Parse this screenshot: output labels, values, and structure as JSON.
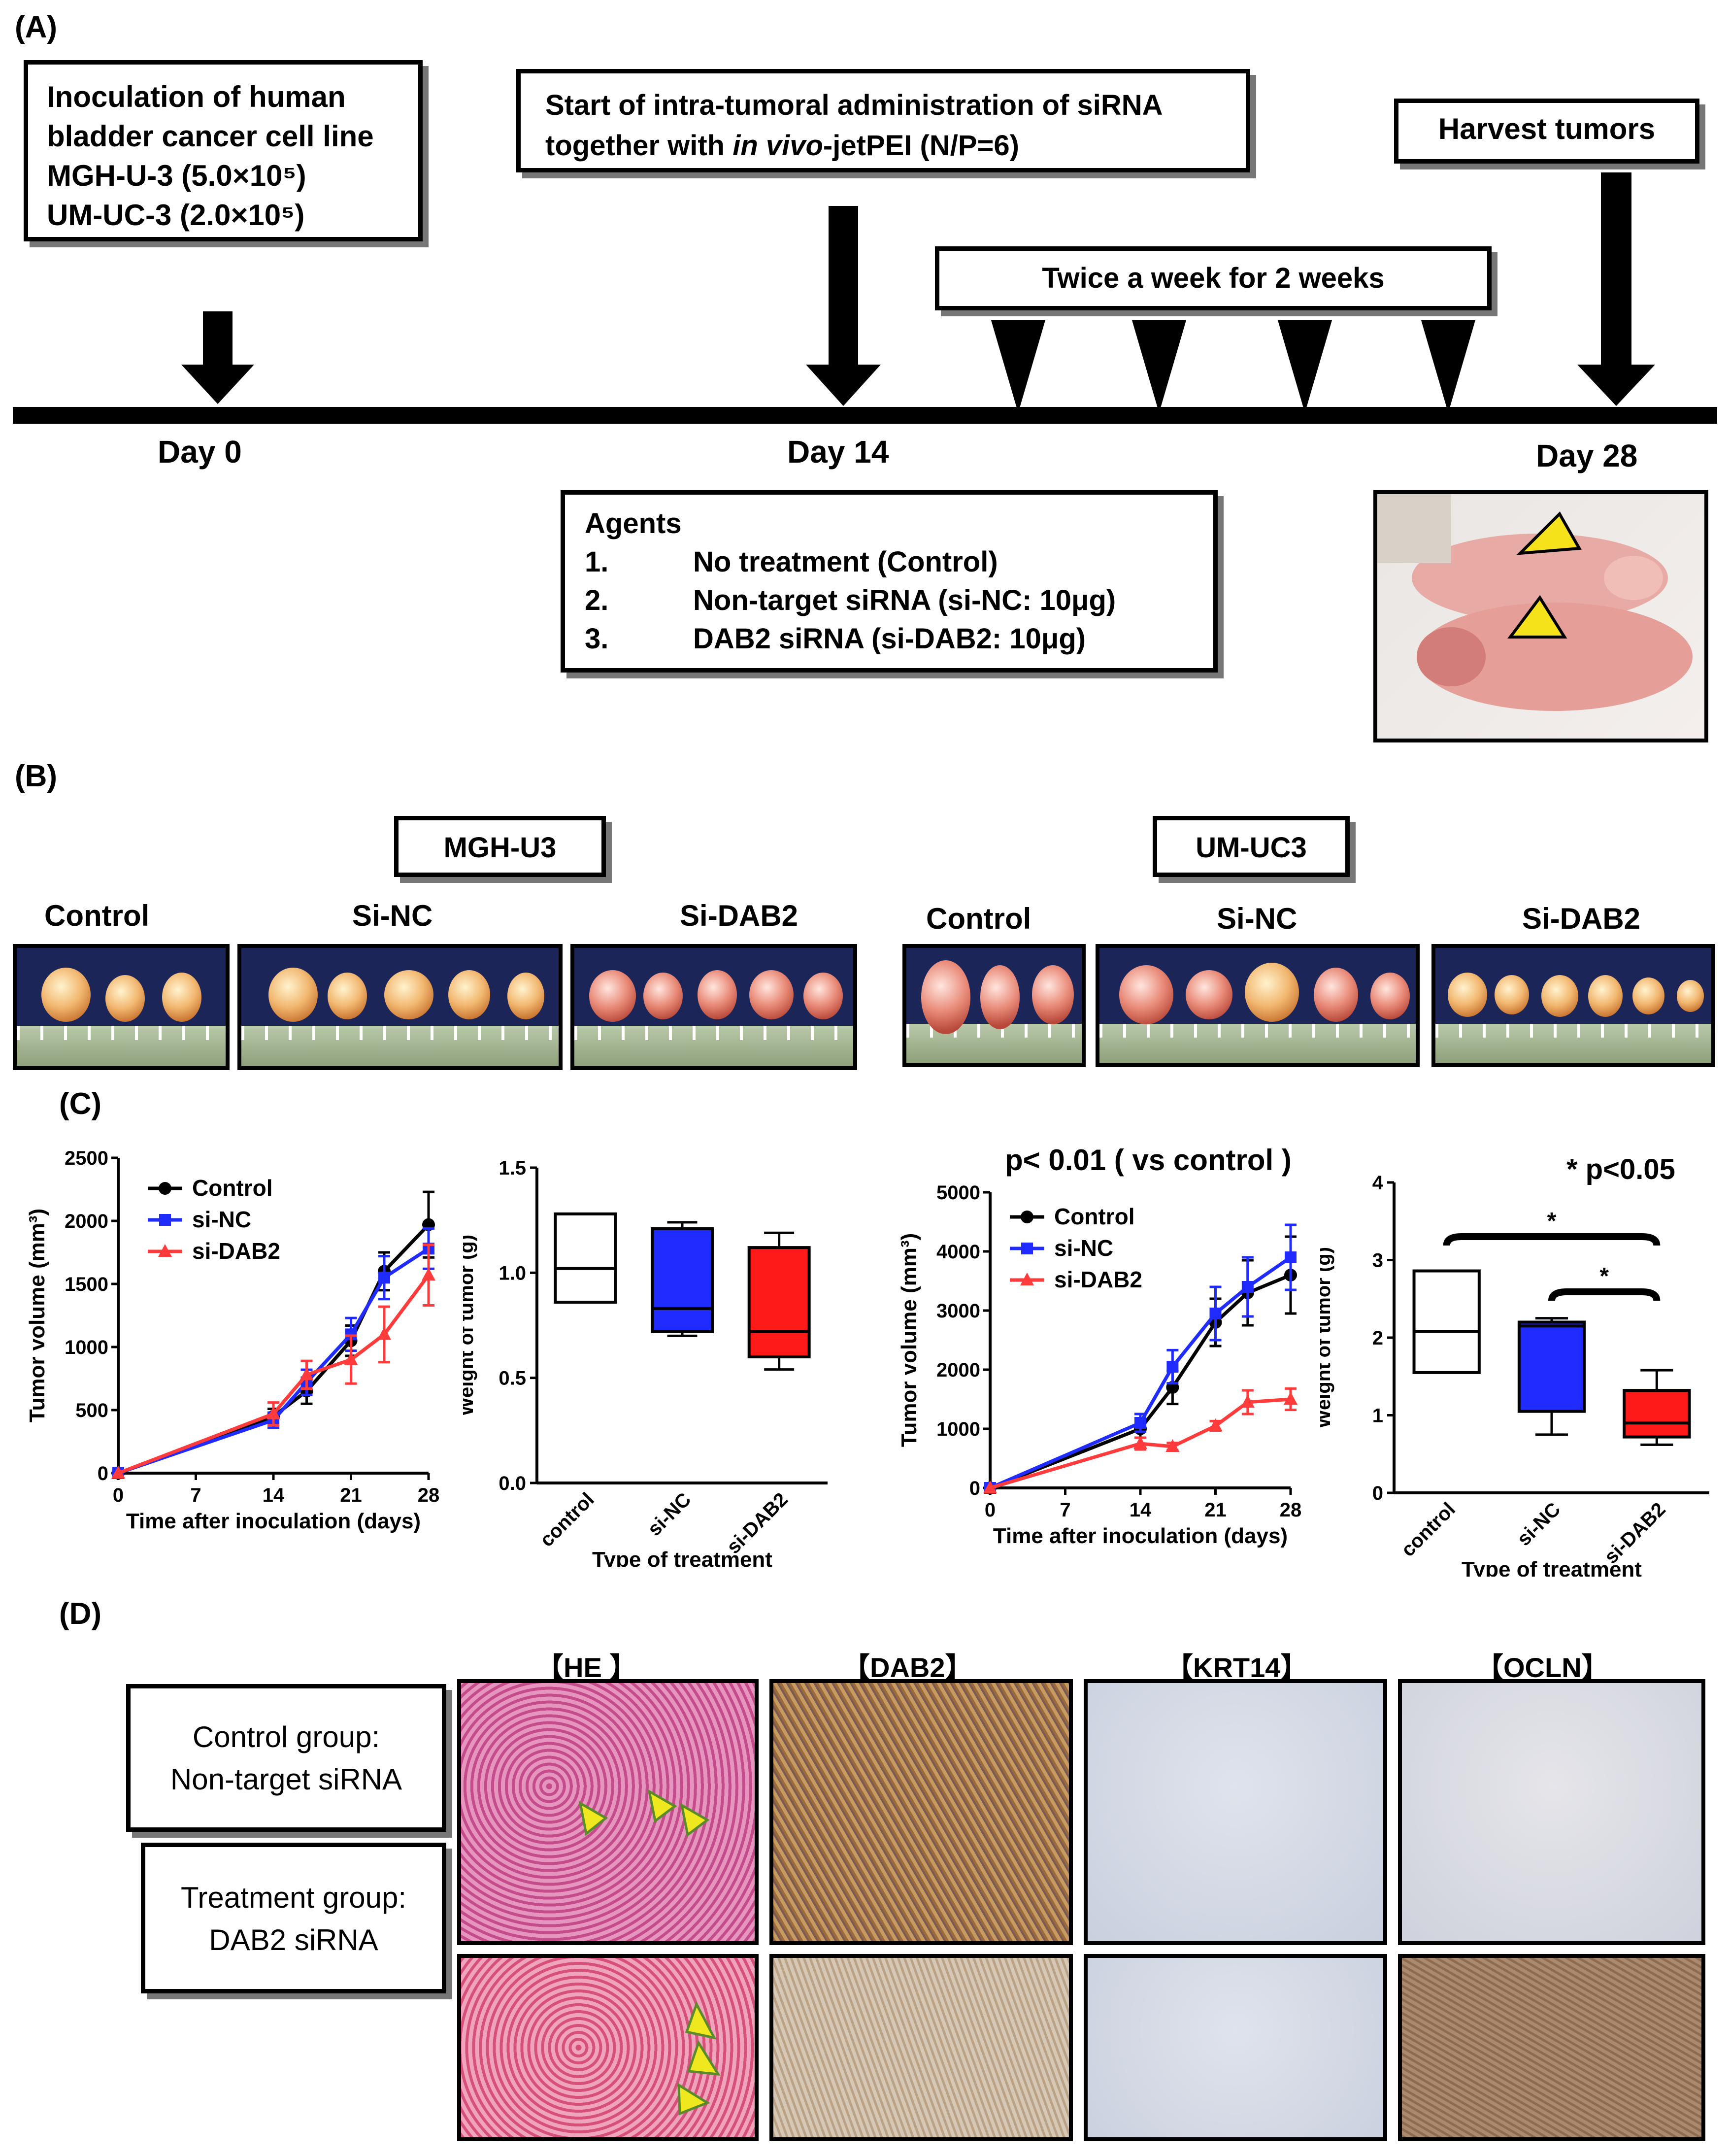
{
  "panel_a": {
    "label": "(A)",
    "box1": {
      "lines": [
        "Inoculation of human",
        "bladder cancer cell line",
        "MGH-U-3  (5.0×10⁵)",
        "UM-UC-3  (2.0×10⁵)"
      ]
    },
    "box2": {
      "line1": "Start of intra-tumoral administration of siRNA",
      "line2_pre": "together with ",
      "line2_italic": "in vivo",
      "line2_post": "-jetPEI (N/P=6)"
    },
    "box3": {
      "text": "Harvest tumors"
    },
    "box4": {
      "text": "Twice a week for 2 weeks"
    },
    "day0": "Day 0",
    "day14": "Day 14",
    "day28": "Day 28",
    "agents": {
      "title": "Agents",
      "items": [
        {
          "num": "1.",
          "text": "No treatment (Control)"
        },
        {
          "num": "2.",
          "text": "Non-target siRNA  (si-NC:  10μg)"
        },
        {
          "num": "3.",
          "text": "DAB2 siRNA  (si-DAB2:  10μg)"
        }
      ]
    }
  },
  "panel_b": {
    "label": "(B)",
    "group1": "MGH-U3",
    "group2": "UM-UC3",
    "labels1": [
      "Control",
      "Si-NC",
      "Si-DAB2"
    ],
    "labels2": [
      "Control",
      "Si-NC",
      "Si-DAB2"
    ]
  },
  "panel_c": {
    "label": "(C)",
    "chart1_pvalue_title": "",
    "chart3_pvalue_title": "p< 0.01 ( vs control )",
    "chart4_pvalue_title": "* p<0.05"
  },
  "panel_d": {
    "label": "(D)",
    "columns": [
      "【HE 】",
      "【DAB2】",
      "【KRT14】",
      "【OCLN】"
    ],
    "row1": [
      "Control group:",
      "Non-target siRNA"
    ],
    "row2": [
      "Treatment group:",
      "DAB2 siRNA"
    ]
  },
  "chart_data": [
    {
      "type": "line",
      "title": "",
      "xlabel": "Time after inoculation (days)",
      "ylabel": "Tumor volume (mm³)",
      "xlim": [
        0,
        28
      ],
      "ylim": [
        0,
        2500
      ],
      "xticks": [
        0,
        7,
        14,
        21,
        28
      ],
      "yticks": [
        0,
        500,
        1000,
        1500,
        2000,
        2500
      ],
      "x": [
        0,
        14,
        17,
        21,
        24,
        28
      ],
      "series": [
        {
          "name": "Control",
          "color": "#000000",
          "marker": "circle",
          "values": [
            0,
            450,
            650,
            1050,
            1600,
            1970
          ],
          "err": [
            0,
            60,
            100,
            120,
            150,
            260
          ]
        },
        {
          "name": "si-NC",
          "color": "#1f2bff",
          "marker": "square",
          "values": [
            0,
            420,
            720,
            1100,
            1550,
            1780
          ],
          "err": [
            0,
            60,
            100,
            130,
            170,
            160
          ]
        },
        {
          "name": "si-DAB2",
          "color": "#ff3b3b",
          "marker": "triangle",
          "values": [
            0,
            470,
            780,
            900,
            1100,
            1570
          ],
          "err": [
            0,
            90,
            110,
            190,
            220,
            240
          ]
        }
      ]
    },
    {
      "type": "box",
      "title": "",
      "xlabel": "Type of treatment",
      "ylabel": "Weight of tumor (g)",
      "ylim": [
        0,
        1.5
      ],
      "yticks": [
        0.0,
        0.5,
        1.0,
        1.5
      ],
      "categories": [
        "control",
        "si-NC",
        "si-DAB2"
      ],
      "colors": [
        "#ffffff",
        "#1f2bff",
        "#ff1a1a"
      ],
      "boxes": [
        {
          "min": 0.86,
          "q1": 0.86,
          "median": 1.02,
          "q3": 1.28,
          "max": 1.28
        },
        {
          "min": 0.7,
          "q1": 0.72,
          "median": 0.83,
          "q3": 1.21,
          "max": 1.24
        },
        {
          "min": 0.54,
          "q1": 0.6,
          "median": 0.72,
          "q3": 1.12,
          "max": 1.19
        }
      ]
    },
    {
      "type": "line",
      "title": "p< 0.01 ( vs control )",
      "xlabel": "Time after inoculation (days)",
      "ylabel": "Tumor volume (mm³)",
      "xlim": [
        0,
        28
      ],
      "ylim": [
        0,
        5000
      ],
      "xticks": [
        0,
        7,
        14,
        21,
        28
      ],
      "yticks": [
        0,
        1000,
        2000,
        3000,
        4000,
        5000
      ],
      "x": [
        0,
        14,
        17,
        21,
        24,
        28
      ],
      "series": [
        {
          "name": "Control",
          "color": "#000000",
          "marker": "circle",
          "values": [
            0,
            1000,
            1700,
            2800,
            3300,
            3600
          ],
          "err": [
            0,
            150,
            280,
            400,
            550,
            650
          ]
        },
        {
          "name": "si-NC",
          "color": "#1f2bff",
          "marker": "square",
          "values": [
            0,
            1100,
            2050,
            2950,
            3400,
            3900
          ],
          "err": [
            0,
            150,
            280,
            450,
            500,
            550
          ]
        },
        {
          "name": "si-DAB2",
          "color": "#ff3b3b",
          "marker": "triangle",
          "values": [
            0,
            750,
            700,
            1050,
            1450,
            1500
          ],
          "err": [
            0,
            100,
            60,
            80,
            200,
            180
          ]
        }
      ]
    },
    {
      "type": "box",
      "title": "* p<0.05",
      "xlabel": "Type of treatment",
      "ylabel": "Weight of tumor (g)",
      "ylim": [
        0,
        4
      ],
      "yticks": [
        0,
        1,
        2,
        3,
        4
      ],
      "categories": [
        "control",
        "si-NC",
        "si-DAB2"
      ],
      "colors": [
        "#ffffff",
        "#1f2bff",
        "#ff1a1a"
      ],
      "boxes": [
        {
          "min": 1.55,
          "q1": 1.55,
          "median": 2.08,
          "q3": 2.86,
          "max": 2.86
        },
        {
          "min": 0.75,
          "q1": 1.05,
          "median": 2.15,
          "q3": 2.2,
          "max": 2.25
        },
        {
          "min": 0.62,
          "q1": 0.72,
          "median": 0.9,
          "q3": 1.32,
          "max": 1.58
        }
      ],
      "significance": [
        {
          "from": "control",
          "to": "si-DAB2",
          "label": "*"
        },
        {
          "from": "si-NC",
          "to": "si-DAB2",
          "label": "*"
        }
      ]
    }
  ]
}
